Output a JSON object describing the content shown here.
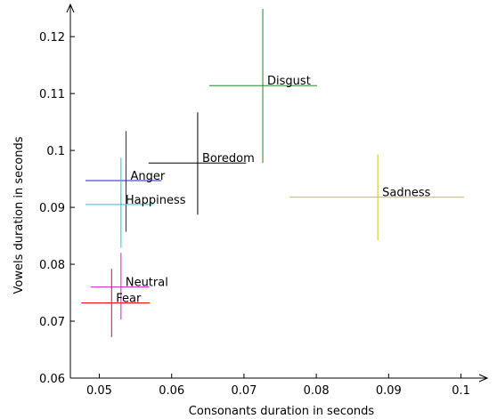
{
  "chart_data": {
    "type": "scatter",
    "xlabel": "Consonants duration in seconds",
    "ylabel": "Vowels duration in seconds",
    "xlim": [
      0.046,
      0.1035
    ],
    "ylim": [
      0.06,
      0.1255
    ],
    "xticks": [
      0.05,
      0.06,
      0.07,
      0.08,
      0.09,
      0.1
    ],
    "xtick_labels": [
      "0.05",
      "0.06",
      "0.07",
      "0.08",
      "0.09",
      "0.1"
    ],
    "yticks": [
      0.06,
      0.07,
      0.08,
      0.09,
      0.1,
      0.11,
      0.12
    ],
    "ytick_labels": [
      "0.06",
      "0.07",
      "0.08",
      "0.09",
      "0.1",
      "0.11",
      "0.12"
    ],
    "grid": false,
    "points": [
      {
        "label": "Disgust",
        "x": 0.0726,
        "y": 0.1114,
        "x_range": [
          0.0652,
          0.0801
        ],
        "y_range": [
          0.0978,
          0.1249
        ],
        "color": "#228b22"
      },
      {
        "label": "Boredom",
        "x": 0.0636,
        "y": 0.0978,
        "x_range": [
          0.0568,
          0.0703
        ],
        "y_range": [
          0.0887,
          0.1067
        ],
        "color": "#000000"
      },
      {
        "label": "Anger",
        "x": 0.0537,
        "y": 0.0947,
        "x_range": [
          0.0481,
          0.0586
        ],
        "y_range": [
          0.0857,
          0.1034
        ],
        "color": "#1f1fc8"
      },
      {
        "label": "Happiness",
        "x": 0.053,
        "y": 0.0905,
        "x_range": [
          0.0481,
          0.0575
        ],
        "y_range": [
          0.0829,
          0.0987
        ],
        "color": "#1fc8c8"
      },
      {
        "label": "Sadness",
        "x": 0.0885,
        "y": 0.0918,
        "x_range": [
          0.0763,
          0.1004
        ],
        "y_range": [
          0.0842,
          0.0993
        ],
        "color": "#c8c81f"
      },
      {
        "label": "Neutral",
        "x": 0.053,
        "y": 0.076,
        "x_range": [
          0.0488,
          0.0569
        ],
        "y_range": [
          0.0703,
          0.082
        ],
        "color": "#c81fc8"
      },
      {
        "label": "Fear",
        "x": 0.0517,
        "y": 0.0732,
        "x_range": [
          0.0475,
          0.057
        ],
        "y_range": [
          0.0672,
          0.0792
        ],
        "color": "#ff0000"
      }
    ]
  }
}
